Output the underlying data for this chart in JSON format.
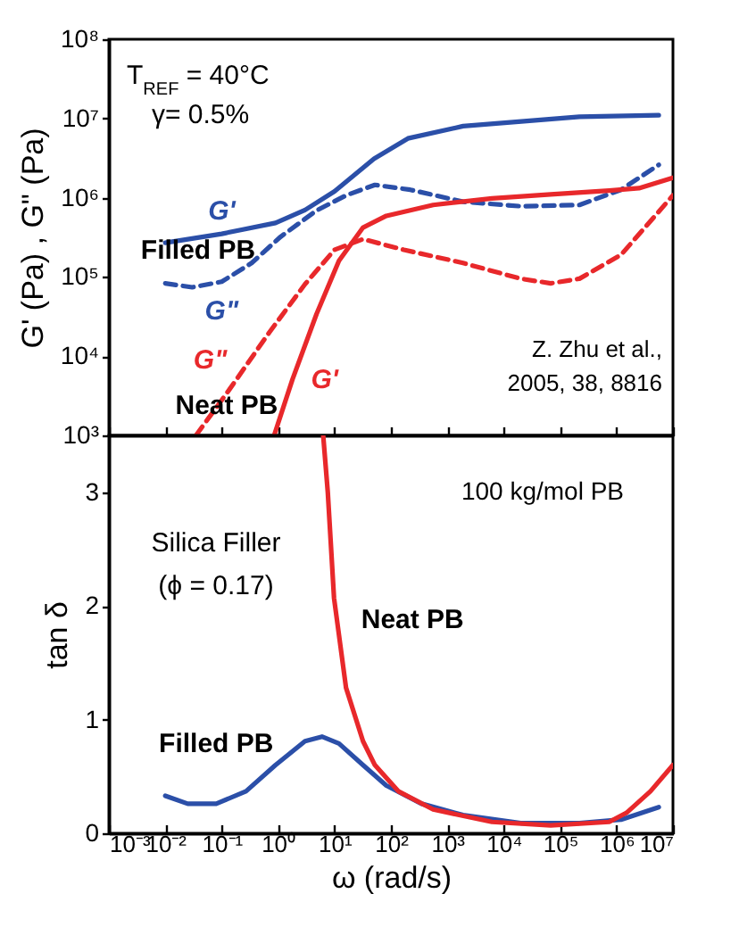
{
  "chart_data": [
    {
      "type": "line",
      "ylabel": "G' (Pa) ,  G\" (Pa)",
      "log": "xy",
      "xlim": [
        0.001,
        10000000
      ],
      "ylim": [
        1000,
        100000000
      ],
      "tick_labels": "y",
      "grid": false,
      "xticks": [
        {
          "value": 0.001,
          "label": null
        },
        {
          "value": 0.01,
          "label": null
        },
        {
          "value": 0.1,
          "label": null
        },
        {
          "value": 1,
          "label": null
        },
        {
          "value": 10,
          "label": null
        },
        {
          "value": 100,
          "label": null
        },
        {
          "value": 1000,
          "label": null
        },
        {
          "value": 10000,
          "label": null
        },
        {
          "value": 100000,
          "label": null
        },
        {
          "value": 1000000,
          "label": null
        },
        {
          "value": 10000000,
          "label": null
        }
      ],
      "yticks": [
        {
          "value": 1000,
          "label": "10³"
        },
        {
          "value": 10000,
          "label": "10⁴"
        },
        {
          "value": 100000,
          "label": "10⁵"
        },
        {
          "value": 1000000,
          "label": "10⁶"
        },
        {
          "value": 10000000,
          "label": "10⁷"
        },
        {
          "value": 100000000,
          "label": "10⁸"
        }
      ],
      "series": [
        {
          "name": "G'",
          "color": "#2b4fa8",
          "line_style": "solid",
          "x": [
            0.01,
            0.1,
            0.9,
            3,
            10,
            50,
            200,
            1900,
            220000,
            5600000
          ],
          "values": [
            270000,
            350000,
            480000,
            700000,
            1200000,
            3100000,
            5600000,
            8000000,
            10500000,
            11000000
          ]
        },
        {
          "name": "G\"",
          "color": "#2b4fa8",
          "line_style": "dashed",
          "x": [
            0.01,
            0.03,
            0.1,
            0.34,
            1.1,
            4.8,
            16,
            52,
            220,
            1900,
            20000,
            220000,
            1200000,
            5600000
          ],
          "values": [
            83000,
            74000,
            87000,
            150000,
            320000,
            690000,
            1070000,
            1450000,
            1260000,
            890000,
            780000,
            810000,
            1260000,
            2600000
          ]
        },
        {
          "name": "G'",
          "color": "#e8282b",
          "line_style": "solid",
          "x": [
            0.85,
            1.8,
            4.8,
            12,
            32,
            83,
            560,
            6200,
            68000,
            740000,
            2500000,
            10000000
          ],
          "values": [
            1000,
            5100,
            34000,
            160000,
            420000,
            590000,
            810000,
            980000,
            1100000,
            1230000,
            1320000,
            1780000
          ]
        },
        {
          "name": "G\"",
          "color": "#e8282b",
          "line_style": "dashed",
          "x": [
            0.035,
            0.13,
            0.7,
            3,
            10,
            32,
            170,
            1900,
            20000,
            68000,
            220000,
            1200000,
            10000000
          ],
          "values": [
            1000,
            3600,
            20000,
            81000,
            220000,
            300000,
            220000,
            150000,
            95000,
            83000,
            95000,
            190000,
            1070000
          ]
        }
      ],
      "annotations": [
        "T$_{REF}$ = 40°C",
        "γ= 0.5%",
        "Z. Zhu et al.,",
        "2005, 38, 8816",
        "Filled PB",
        "Neat PB"
      ]
    },
    {
      "type": "line",
      "xlabel": "ω (rad/s)",
      "ylabel": "tan δ",
      "log": "x",
      "xlim": [
        0.001,
        10000000
      ],
      "ylim": [
        0,
        3.5
      ],
      "grid": false,
      "xticks": [
        {
          "value": 0.001,
          "label": "10⁻³"
        },
        {
          "value": 0.01,
          "label": "10⁻²"
        },
        {
          "value": 0.1,
          "label": "10⁻¹"
        },
        {
          "value": 1,
          "label": "10⁰"
        },
        {
          "value": 10,
          "label": "10¹"
        },
        {
          "value": 100,
          "label": "10²"
        },
        {
          "value": 1000,
          "label": "10³"
        },
        {
          "value": 10000,
          "label": "10⁴"
        },
        {
          "value": 100000,
          "label": "10⁵"
        },
        {
          "value": 1000000,
          "label": "10⁶"
        },
        {
          "value": 10000000,
          "label": "10⁷"
        }
      ],
      "yticks": [
        0,
        1,
        2,
        3
      ],
      "series": [
        {
          "name": "Filled PB",
          "color": "#2b4fa8",
          "x": [
            0.01,
            0.025,
            0.08,
            0.27,
            0.9,
            3,
            6,
            12,
            32,
            83,
            350,
            1900,
            20000,
            220000,
            1200000,
            5600000
          ],
          "values": [
            0.33,
            0.26,
            0.26,
            0.37,
            0.6,
            0.81,
            0.85,
            0.79,
            0.6,
            0.42,
            0.26,
            0.16,
            0.09,
            0.09,
            0.12,
            0.23
          ]
        },
        {
          "name": "Neat PB",
          "color": "#e8282b",
          "x": [
            6.3,
            7.6,
            9.8,
            16,
            32,
            52,
            135,
            560,
            6200,
            68000,
            740000,
            1500000,
            4000000,
            10000000
          ],
          "values": [
            3.5,
            3.0,
            2.07,
            1.28,
            0.81,
            0.6,
            0.37,
            0.21,
            0.1,
            0.07,
            0.1,
            0.18,
            0.37,
            0.6
          ]
        }
      ],
      "annotations": [
        "100 kg/mol PB",
        "Silica Filler",
        "(ϕ = 0.17)"
      ]
    }
  ]
}
